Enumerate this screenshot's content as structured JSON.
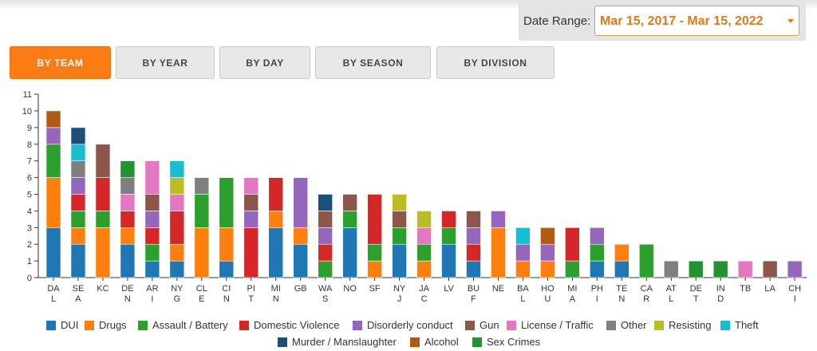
{
  "date_range": {
    "label": "Date Range:",
    "value": "Mar 15, 2017 - Mar 15, 2022"
  },
  "tabs": [
    {
      "label": "BY TEAM",
      "active": true
    },
    {
      "label": "BY YEAR",
      "active": false
    },
    {
      "label": "BY DAY",
      "active": false
    },
    {
      "label": "BY SEASON",
      "active": false
    },
    {
      "label": "BY DIVISION",
      "active": false
    }
  ],
  "chart_data": {
    "type": "bar",
    "stacked": true,
    "ylim": [
      0,
      11
    ],
    "yticks": [
      0,
      1,
      2,
      3,
      4,
      5,
      6,
      7,
      8,
      9,
      10,
      11
    ],
    "grid": false,
    "legend_position": "bottom",
    "categories": [
      "DAL",
      "SEA",
      "KC",
      "DEN",
      "ARI",
      "NYG",
      "CLE",
      "CIN",
      "PIT",
      "MIN",
      "GB",
      "WAS",
      "NO",
      "SF",
      "NYJ",
      "JAC",
      "LV",
      "BUF",
      "NE",
      "BAL",
      "HOU",
      "MIA",
      "PHI",
      "TEN",
      "CAR",
      "ATL",
      "DET",
      "IND",
      "TB",
      "LA",
      "CHI"
    ],
    "category_labels": [
      [
        "DA",
        "L"
      ],
      [
        "SE",
        "A"
      ],
      [
        "KC"
      ],
      [
        "DE",
        "N"
      ],
      [
        "AR",
        "I"
      ],
      [
        "NY",
        "G"
      ],
      [
        "CL",
        "E"
      ],
      [
        "CI",
        "N"
      ],
      [
        "PI",
        "T"
      ],
      [
        "MI",
        "N"
      ],
      [
        "GB"
      ],
      [
        "WA",
        "S"
      ],
      [
        "NO"
      ],
      [
        "SF"
      ],
      [
        "NY",
        "J"
      ],
      [
        "JA",
        "C"
      ],
      [
        "LV"
      ],
      [
        "BU",
        "F"
      ],
      [
        "NE"
      ],
      [
        "BA",
        "L"
      ],
      [
        "HO",
        "U"
      ],
      [
        "MI",
        "A"
      ],
      [
        "PH",
        "I"
      ],
      [
        "TE",
        "N"
      ],
      [
        "CA",
        "R"
      ],
      [
        "AT",
        "L"
      ],
      [
        "DE",
        "T"
      ],
      [
        "IN",
        "D"
      ],
      [
        "TB"
      ],
      [
        "LA"
      ],
      [
        "CH",
        "I"
      ]
    ],
    "series": [
      {
        "name": "DUI",
        "color": "#1f77b4",
        "values": [
          3,
          2,
          0,
          2,
          1,
          1,
          0,
          1,
          0,
          3,
          2,
          0,
          3,
          0,
          2,
          0,
          2,
          1,
          0,
          0,
          0,
          0,
          1,
          1,
          0,
          0,
          0,
          0,
          0,
          0,
          0
        ]
      },
      {
        "name": "Drugs",
        "color": "#ff7f0e",
        "values": [
          3,
          1,
          3,
          1,
          0,
          1,
          3,
          2,
          0,
          1,
          1,
          0,
          0,
          1,
          0,
          1,
          0,
          0,
          3,
          1,
          1,
          0,
          0,
          1,
          0,
          0,
          0,
          0,
          0,
          0,
          0
        ]
      },
      {
        "name": "Assault / Battery",
        "color": "#2ca02c",
        "values": [
          2,
          1,
          1,
          0,
          1,
          0,
          2,
          3,
          0,
          0,
          0,
          1,
          1,
          1,
          1,
          1,
          1,
          0,
          0,
          0,
          0,
          1,
          1,
          0,
          2,
          0,
          0,
          0,
          0,
          0,
          0
        ]
      },
      {
        "name": "Domestic Violence",
        "color": "#d62728",
        "values": [
          0,
          1,
          2,
          1,
          1,
          2,
          0,
          0,
          3,
          2,
          0,
          1,
          0,
          3,
          0,
          0,
          1,
          1,
          0,
          0,
          0,
          2,
          0,
          0,
          0,
          0,
          0,
          0,
          0,
          0,
          0
        ]
      },
      {
        "name": "Disorderly conduct",
        "color": "#9467bd",
        "values": [
          1,
          1,
          0,
          0,
          1,
          0,
          0,
          0,
          1,
          0,
          3,
          1,
          0,
          0,
          0,
          0,
          0,
          1,
          1,
          1,
          1,
          0,
          1,
          0,
          0,
          0,
          0,
          0,
          0,
          0,
          1
        ]
      },
      {
        "name": "Gun",
        "color": "#8c564b",
        "values": [
          0,
          0,
          2,
          0,
          1,
          0,
          0,
          0,
          1,
          0,
          0,
          1,
          1,
          0,
          1,
          0,
          0,
          1,
          0,
          0,
          0,
          0,
          0,
          0,
          0,
          0,
          0,
          0,
          0,
          1,
          0
        ]
      },
      {
        "name": "License / Traffic",
        "color": "#e377c2",
        "values": [
          0,
          0,
          0,
          1,
          2,
          1,
          0,
          0,
          1,
          0,
          0,
          0,
          0,
          0,
          0,
          1,
          0,
          0,
          0,
          0,
          0,
          0,
          0,
          0,
          0,
          0,
          0,
          0,
          1,
          0,
          0
        ]
      },
      {
        "name": "Other",
        "color": "#7f7f7f",
        "values": [
          0,
          1,
          0,
          1,
          0,
          0,
          1,
          0,
          0,
          0,
          0,
          0,
          0,
          0,
          0,
          0,
          0,
          0,
          0,
          0,
          0,
          0,
          0,
          0,
          0,
          1,
          0,
          0,
          0,
          0,
          0
        ]
      },
      {
        "name": "Resisting",
        "color": "#bcbd22",
        "values": [
          0,
          0,
          0,
          0,
          0,
          1,
          0,
          0,
          0,
          0,
          0,
          0,
          0,
          0,
          1,
          1,
          0,
          0,
          0,
          0,
          0,
          0,
          0,
          0,
          0,
          0,
          0,
          0,
          0,
          0,
          0
        ]
      },
      {
        "name": "Theft",
        "color": "#17becf",
        "values": [
          0,
          1,
          0,
          0,
          0,
          1,
          0,
          0,
          0,
          0,
          0,
          0,
          0,
          0,
          0,
          0,
          0,
          0,
          0,
          1,
          0,
          0,
          0,
          0,
          0,
          0,
          0,
          0,
          0,
          0,
          0
        ]
      },
      {
        "name": "Murder / Manslaughter",
        "color": "#1a5079",
        "values": [
          0,
          1,
          0,
          0,
          0,
          0,
          0,
          0,
          0,
          0,
          0,
          1,
          0,
          0,
          0,
          0,
          0,
          0,
          0,
          0,
          0,
          0,
          0,
          0,
          0,
          0,
          0,
          0,
          0,
          0,
          0
        ]
      },
      {
        "name": "Alcohol",
        "color": "#b25a12",
        "values": [
          1,
          0,
          0,
          0,
          0,
          0,
          0,
          0,
          0,
          0,
          0,
          0,
          0,
          0,
          0,
          0,
          0,
          0,
          0,
          0,
          1,
          0,
          0,
          0,
          0,
          0,
          0,
          0,
          0,
          0,
          0
        ]
      },
      {
        "name": "Sex Crimes",
        "color": "#229330",
        "values": [
          0,
          0,
          0,
          1,
          0,
          0,
          0,
          0,
          0,
          0,
          0,
          0,
          0,
          0,
          0,
          0,
          0,
          0,
          0,
          0,
          0,
          0,
          0,
          0,
          0,
          0,
          1,
          1,
          0,
          0,
          0
        ]
      }
    ]
  }
}
